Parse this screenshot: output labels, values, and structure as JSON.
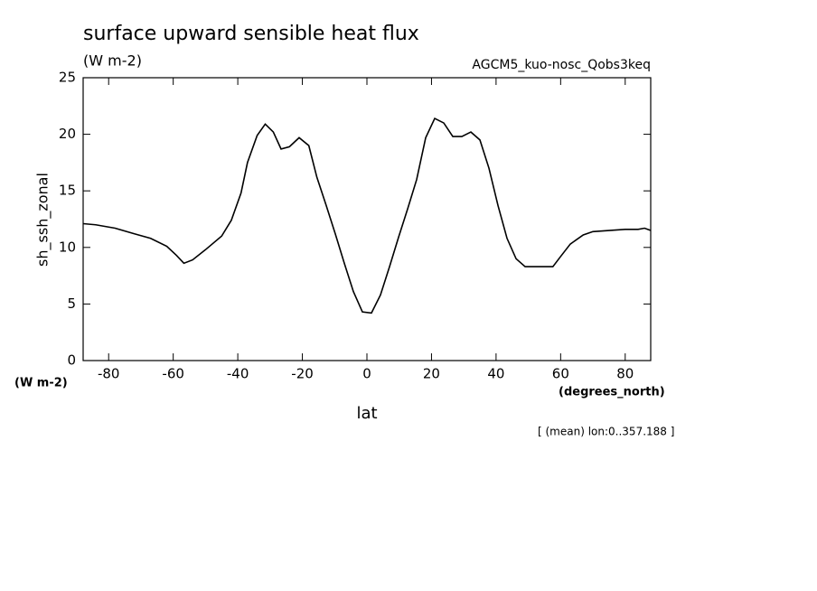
{
  "chart_data": {
    "type": "line",
    "title": "surface upward sensible heat flux",
    "subtitle": "(W m-2)",
    "run_label": "AGCM5_kuo-nosc_Qobs3keq",
    "y_label": "sh_ssh_zonal",
    "y_units": "(W m-2)",
    "x_label": "lat",
    "x_units": "(degrees_north)",
    "footnote": "[ (mean) lon:0..357.188 ]",
    "x": [
      -87.9,
      -84,
      -78,
      -72,
      -67,
      -62,
      -59,
      -56.7,
      -54,
      -50,
      -45,
      -42,
      -39,
      -37,
      -34,
      -31.5,
      -29,
      -26.6,
      -24,
      -21,
      -18,
      -15.5,
      -12.6,
      -9.8,
      -7,
      -4.2,
      -1.4,
      1.4,
      4.2,
      7,
      9.8,
      12.6,
      15.4,
      18.2,
      21,
      23.8,
      26.6,
      29.4,
      32.2,
      35,
      37.8,
      40.6,
      43.4,
      46.2,
      49,
      52,
      56,
      57.6,
      60,
      63,
      67,
      70,
      75,
      80,
      84,
      86,
      87.9
    ],
    "series": [
      {
        "color": "#000000",
        "values": [
          12.1,
          12.0,
          11.7,
          11.2,
          10.8,
          10.1,
          9.3,
          8.6,
          8.9,
          9.8,
          11.0,
          12.4,
          14.8,
          17.5,
          19.9,
          20.9,
          20.2,
          18.7,
          18.9,
          19.7,
          19.0,
          16.2,
          13.7,
          11.2,
          8.6,
          6.1,
          4.3,
          4.2,
          5.8,
          8.3,
          10.9,
          13.4,
          16.0,
          19.7,
          21.4,
          21.0,
          19.8,
          19.8,
          20.2,
          19.5,
          17.0,
          13.7,
          10.8,
          9.0,
          8.3,
          8.3,
          8.3,
          8.3,
          9.2,
          10.3,
          11.1,
          11.4,
          11.5,
          11.6,
          11.6,
          11.7,
          11.5
        ]
      }
    ],
    "xlim": [
      -87.9,
      87.9
    ],
    "ylim": [
      0,
      25
    ],
    "xticks": [
      -80,
      -60,
      -40,
      -20,
      0,
      20,
      40,
      60,
      80
    ],
    "yticks": [
      0,
      5,
      10,
      15,
      20,
      25
    ]
  }
}
